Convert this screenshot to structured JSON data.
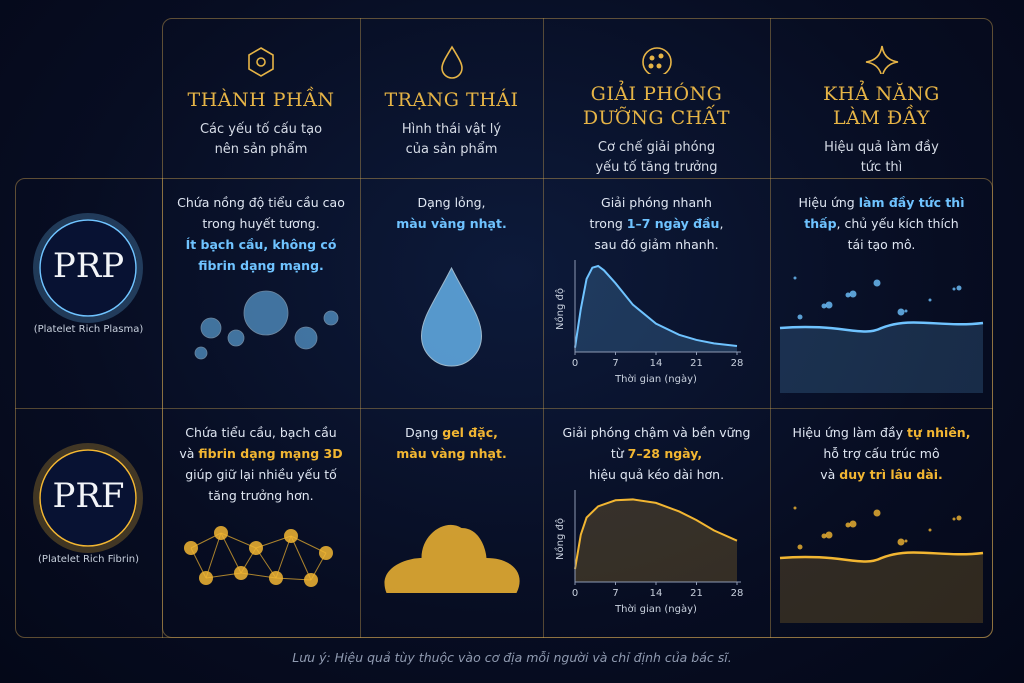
{
  "header": {
    "columns": [
      {
        "title": [
          "THÀNH PHẦN"
        ],
        "subtitle": [
          "Các yếu tố cấu tạo",
          "nên sản phẩm"
        ]
      },
      {
        "title": [
          "TRẠNG THÁI"
        ],
        "subtitle": [
          "Hình thái vật lý",
          "của sản phẩm"
        ]
      },
      {
        "title": [
          "GIẢI PHÓNG",
          "DƯỠNG CHẤT"
        ],
        "subtitle": [
          "Cơ chế giải phóng",
          "yếu tố tăng trưởng"
        ]
      },
      {
        "title": [
          "KHẢ NĂNG",
          "LÀM ĐẦY"
        ],
        "subtitle": [
          "Hiệu quả làm đầy",
          "tức thì"
        ]
      }
    ]
  },
  "rows": [
    {
      "label": "PRP",
      "sublabel": "(Platelet Rich Plasma)",
      "color": "#6fc3ff",
      "cells": [
        {
          "lines": [
            [
              {
                "text": "Chứa nồng độ tiểu cầu cao"
              }
            ],
            [
              {
                "text": "trong huyết tương."
              }
            ],
            [
              {
                "text": "Ít bạch cầu, không có",
                "accent": true
              }
            ],
            [
              {
                "text": "fibrin dạng mạng.",
                "accent": true
              }
            ]
          ]
        },
        {
          "lines": [
            [
              {
                "text": "Dạng lỏng,"
              }
            ],
            [
              {
                "text": "màu vàng nhạt.",
                "accent": true
              }
            ]
          ]
        },
        {
          "lines": [
            [
              {
                "text": "Giải phóng nhanh"
              }
            ],
            [
              {
                "text": "trong "
              },
              {
                "text": "1–7 ngày đầu",
                "accent": true
              },
              {
                "text": ","
              }
            ],
            [
              {
                "text": "sau đó giảm nhanh."
              }
            ]
          ],
          "chart": {
            "type": "line",
            "xlabel": "Thời gian (ngày)",
            "ylabel": "Nồng độ",
            "x": [
              0,
              1,
              2,
              3,
              4,
              5,
              7,
              10,
              14,
              18,
              21,
              24,
              28
            ],
            "values": [
              5,
              50,
              85,
              98,
              100,
              95,
              80,
              55,
              33,
              20,
              14,
              10,
              7
            ],
            "xlim": [
              0,
              28
            ],
            "ylim": [
              0,
              100
            ],
            "xticks": [
              0,
              7,
              14,
              21,
              28
            ]
          }
        },
        {
          "lines": [
            [
              {
                "text": "Hiệu ứng "
              },
              {
                "text": "làm đầy tức thì",
                "accent": true
              }
            ],
            [
              {
                "text": "thấp",
                "accent": true
              },
              {
                "text": ", chủ yếu kích thích"
              }
            ],
            [
              {
                "text": "tái tạo mô."
              }
            ]
          ]
        }
      ]
    },
    {
      "label": "PRF",
      "sublabel": "(Platelet Rich Fibrin)",
      "color": "#f2b632",
      "cells": [
        {
          "lines": [
            [
              {
                "text": "Chứa tiểu cầu, bạch cầu"
              }
            ],
            [
              {
                "text": "và "
              },
              {
                "text": "fibrin dạng mạng 3D",
                "accent": true
              }
            ],
            [
              {
                "text": "giúp giữ lại nhiều yếu tố"
              }
            ],
            [
              {
                "text": "tăng trưởng hơn."
              }
            ]
          ]
        },
        {
          "lines": [
            [
              {
                "text": "Dạng "
              },
              {
                "text": "gel đặc,",
                "accent": true
              }
            ],
            [
              {
                "text": "màu vàng nhạt.",
                "accent": true
              }
            ]
          ]
        },
        {
          "lines": [
            [
              {
                "text": "Giải phóng chậm và bền vững"
              }
            ],
            [
              {
                "text": "từ "
              },
              {
                "text": "7–28 ngày,",
                "accent": true
              }
            ],
            [
              {
                "text": "hiệu quả kéo dài hơn."
              }
            ]
          ],
          "chart": {
            "type": "line",
            "xlabel": "Thời gian (ngày)",
            "ylabel": "Nồng độ",
            "x": [
              0,
              1,
              2,
              4,
              7,
              10,
              14,
              18,
              21,
              24,
              28
            ],
            "values": [
              15,
              55,
              75,
              88,
              95,
              96,
              92,
              82,
              72,
              60,
              48
            ],
            "xlim": [
              0,
              28
            ],
            "ylim": [
              0,
              100
            ],
            "xticks": [
              0,
              7,
              14,
              21,
              28
            ]
          }
        },
        {
          "lines": [
            [
              {
                "text": "Hiệu ứng làm đầy "
              },
              {
                "text": "tự nhiên,",
                "accent": true
              }
            ],
            [
              {
                "text": "hỗ trợ cấu trúc mô"
              }
            ],
            [
              {
                "text": "và "
              },
              {
                "text": "duy trì lâu dài.",
                "accent": true
              }
            ]
          ]
        }
      ]
    }
  ],
  "footnote": "Lưu ý: Hiệu quả tùy thuộc vào cơ địa mỗi người và chỉ định của bác sĩ."
}
